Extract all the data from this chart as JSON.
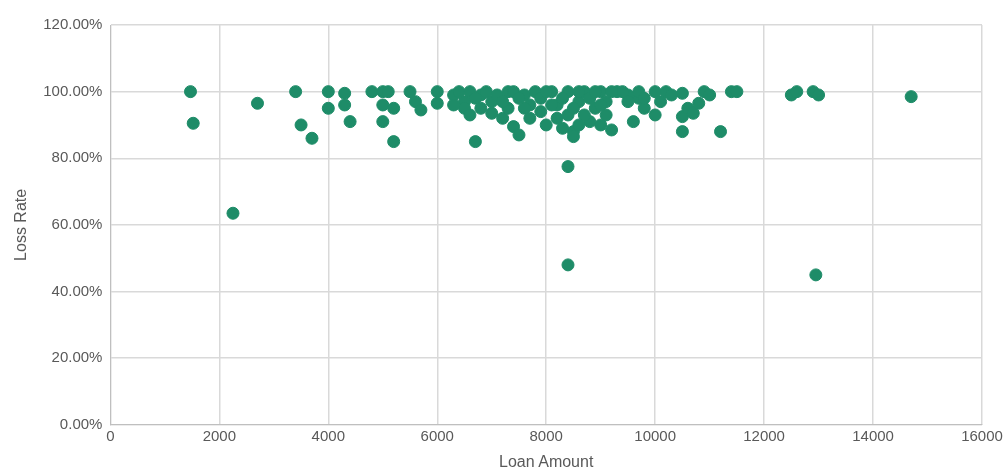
{
  "chart_data": {
    "type": "scatter",
    "xlabel": "Loan Amount",
    "ylabel": "Loss Rate",
    "grid": true,
    "legend": false,
    "marker": "circle",
    "xlim": [
      0,
      16000
    ],
    "xticks": [
      0,
      2000,
      4000,
      6000,
      8000,
      10000,
      12000,
      14000,
      16000
    ],
    "ylim": [
      0,
      120
    ],
    "yticks": [
      {
        "value": 0,
        "label": "0.00%"
      },
      {
        "value": 20,
        "label": "20.00%"
      },
      {
        "value": 40,
        "label": "40.00%"
      },
      {
        "value": 60,
        "label": "60.00%"
      },
      {
        "value": 80,
        "label": "80.00%"
      },
      {
        "value": 100,
        "label": "100.00%"
      },
      {
        "value": 120,
        "label": "120.00%"
      }
    ],
    "series": [
      {
        "color": "#1e8c68",
        "x": [
          1470,
          1520,
          2250,
          2700,
          3400,
          3500,
          3700,
          4000,
          4000,
          4300,
          4300,
          4400,
          4800,
          5000,
          5000,
          5000,
          5200,
          5100,
          5200,
          5500,
          5600,
          5700,
          6000,
          6000,
          6300,
          6500,
          6500,
          6600,
          6700,
          6800,
          6900,
          7000,
          7000,
          7200,
          7300,
          7300,
          7400,
          7500,
          7600,
          7700,
          7800,
          7900,
          8000,
          8100,
          8200,
          8400,
          8400,
          8400,
          8400,
          8500,
          8500,
          8600,
          8700,
          8800,
          8900,
          9000,
          9000,
          9100,
          9200,
          9300,
          9500,
          9600,
          9700,
          9800,
          10000,
          10000,
          10100,
          10500,
          10500,
          10500,
          10600,
          10700,
          10800,
          10900,
          11000,
          11200,
          11400,
          11500,
          12500,
          12600,
          12900,
          13000,
          12950,
          14700,
          6400,
          6600,
          6700,
          7100,
          7200,
          7400,
          7600,
          7700,
          7900,
          8000,
          8100,
          8200,
          8300,
          8500,
          8600,
          8700,
          8800,
          8900,
          9000,
          9100,
          9400,
          9500,
          9700,
          10200,
          6300,
          6800,
          7500,
          8300,
          8600,
          9200,
          9800,
          10300
        ],
        "values": [
          100,
          90.5,
          63.5,
          96.5,
          100,
          90,
          86,
          95,
          100,
          99.5,
          96,
          91,
          100,
          100,
          96,
          91,
          85,
          100,
          95,
          100,
          97,
          94.5,
          100,
          96.5,
          99,
          97,
          95,
          93,
          85,
          99,
          100,
          97,
          93.5,
          92,
          100,
          95,
          89.5,
          87,
          99,
          96,
          100,
          94,
          90,
          100,
          96,
          77.5,
          48,
          100,
          93,
          88,
          86.5,
          97,
          100,
          91,
          95,
          100,
          90,
          97,
          88.5,
          100,
          99,
          91,
          98,
          95,
          100,
          93,
          97,
          99.5,
          92.5,
          88,
          95,
          93.5,
          96.5,
          100,
          99,
          88,
          100,
          100,
          99,
          100,
          100,
          99,
          45,
          98.5,
          100,
          100,
          98,
          99,
          97,
          100,
          95,
          92,
          98,
          100,
          96,
          92,
          98,
          95,
          100,
          93,
          98,
          100,
          96,
          93,
          100,
          97,
          100,
          100,
          96,
          95,
          98,
          89,
          90,
          100,
          98,
          99
        ]
      }
    ]
  }
}
